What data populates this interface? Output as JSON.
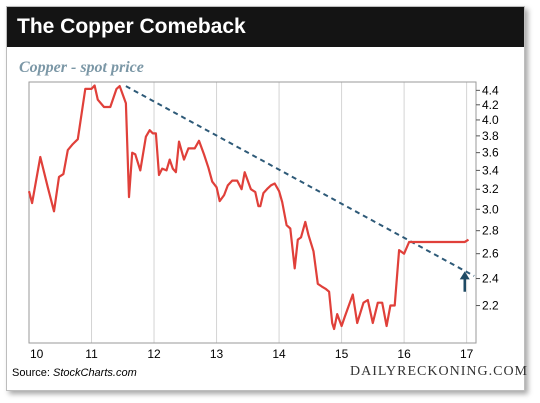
{
  "title": "The Copper Comeback",
  "chart_data": {
    "type": "line",
    "title": "Copper - spot price",
    "x_ticks": [
      "10",
      "11",
      "12",
      "13",
      "14",
      "15",
      "16",
      "17"
    ],
    "y_ticks": [
      "4.4",
      "4.2",
      "4.0",
      "3.8",
      "3.6",
      "3.4",
      "3.2",
      "3.0",
      "2.8",
      "2.6",
      "2.4",
      "2.2"
    ],
    "xlim": [
      10,
      17.15
    ],
    "ylim": [
      1.95,
      4.52
    ],
    "y_scale": "log",
    "grid": "vertical",
    "series": [
      {
        "color": "#e0403a",
        "x": [
          10.0,
          10.05,
          10.18,
          10.3,
          10.4,
          10.48,
          10.55,
          10.62,
          10.7,
          10.78,
          10.9,
          11.0,
          11.05,
          11.1,
          11.2,
          11.25,
          11.3,
          11.4,
          11.45,
          11.55,
          11.6,
          11.65,
          11.7,
          11.78,
          11.87,
          11.93,
          11.98,
          12.03,
          12.08,
          12.13,
          12.2,
          12.25,
          12.3,
          12.35,
          12.4,
          12.48,
          12.55,
          12.6,
          12.65,
          12.72,
          12.8,
          12.87,
          12.93,
          13.0,
          13.05,
          13.12,
          13.18,
          13.25,
          13.33,
          13.4,
          13.45,
          13.55,
          13.62,
          13.67,
          13.7,
          13.75,
          13.82,
          13.87,
          13.93,
          14.0,
          14.05,
          14.12,
          14.18,
          14.25,
          14.3,
          14.35,
          14.42,
          14.47,
          14.55,
          14.62,
          14.68,
          14.75,
          14.8,
          14.85,
          14.88,
          14.93,
          15.0,
          15.05,
          15.1,
          15.18,
          15.25,
          15.35,
          15.42,
          15.5,
          15.58,
          15.65,
          15.72,
          15.78,
          15.85,
          15.92,
          16.0,
          16.08,
          16.15,
          16.2,
          16.28,
          16.35,
          16.42,
          16.5,
          16.57,
          16.65,
          16.72,
          16.8,
          16.87,
          16.92,
          16.97,
          17.03
        ],
        "y": [
          3.18,
          3.06,
          3.55,
          3.22,
          2.98,
          3.33,
          3.36,
          3.63,
          3.7,
          3.76,
          4.42,
          4.42,
          4.47,
          4.27,
          4.17,
          4.17,
          4.17,
          4.42,
          4.46,
          4.22,
          3.12,
          3.6,
          3.58,
          3.4,
          3.79,
          3.87,
          3.83,
          3.83,
          3.35,
          3.42,
          3.4,
          3.52,
          3.42,
          3.38,
          3.73,
          3.52,
          3.65,
          3.65,
          3.65,
          3.74,
          3.58,
          3.43,
          3.28,
          3.22,
          3.08,
          3.14,
          3.24,
          3.29,
          3.29,
          3.2,
          3.38,
          3.2,
          3.17,
          3.03,
          3.03,
          3.16,
          3.21,
          3.24,
          3.26,
          3.18,
          3.07,
          2.85,
          2.82,
          2.48,
          2.72,
          2.74,
          2.88,
          2.76,
          2.62,
          2.36,
          2.34,
          2.32,
          2.3,
          2.08,
          2.04,
          2.14,
          2.06,
          2.12,
          2.18,
          2.28,
          2.08,
          2.22,
          2.24,
          2.08,
          2.22,
          2.22,
          2.06,
          2.2,
          2.2,
          2.63,
          2.6,
          2.7,
          2.7,
          2.7,
          2.7,
          2.7,
          2.7,
          2.7,
          2.7,
          2.7,
          2.7,
          2.7,
          2.7,
          2.7,
          2.7,
          2.72
        ]
      }
    ],
    "trendline": {
      "color": "#2e5a78",
      "x": [
        11.55,
        17.12
      ],
      "y": [
        4.46,
        2.42
      ]
    },
    "marker": {
      "x": 16.97,
      "color": "#1e4a64"
    }
  },
  "source_label": "Source:",
  "source_name": "StockCharts.com",
  "brand": "DAILYRECKONING.COM"
}
